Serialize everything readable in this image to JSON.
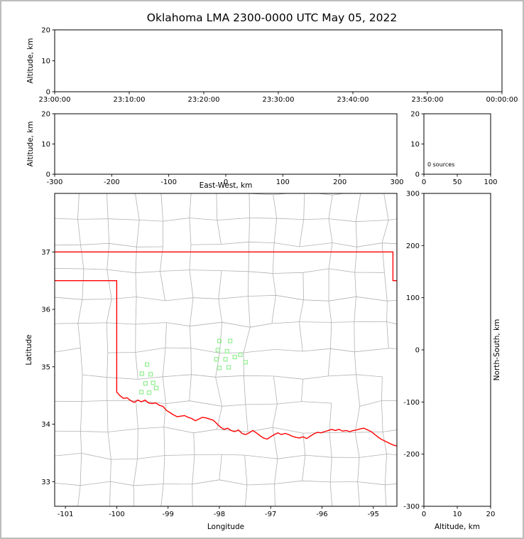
{
  "figure": {
    "title": "Oklahoma LMA 2300-0000 UTC May 05, 2022",
    "background": "#ffffff",
    "border_color": "#bdbdbd"
  },
  "colors": {
    "axis": "#000000",
    "county_lines": "#b2b2b2",
    "state_border": "#ff0000",
    "station_marker": "#90ee90"
  },
  "chart_data": [
    {
      "id": "time_height",
      "type": "scatter",
      "ylabel": "Altitude, km",
      "xlim": [
        0,
        6
      ],
      "xtick_values": [
        0,
        1,
        2,
        3,
        4,
        5,
        6
      ],
      "xticks": [
        "23:00:00",
        "23:10:00",
        "23:20:00",
        "23:30:00",
        "23:40:00",
        "23:50:00",
        "00:00:00"
      ],
      "ylim": [
        0,
        20
      ],
      "yticks": [
        0,
        10,
        20
      ],
      "points": []
    },
    {
      "id": "ew_height",
      "type": "scatter",
      "xlabel": "East-West, km",
      "ylabel": "Altitude, km",
      "xlim": [
        -300,
        300
      ],
      "xticks": [
        -300,
        -200,
        -100,
        0,
        100,
        200,
        300
      ],
      "ylim": [
        0,
        20
      ],
      "yticks": [
        0,
        10,
        20
      ],
      "points": []
    },
    {
      "id": "alt_hist",
      "type": "line",
      "xlim": [
        0,
        100
      ],
      "xticks": [
        0,
        50,
        100
      ],
      "ylim": [
        0,
        20
      ],
      "yticks": [
        0,
        10,
        20
      ],
      "annotation": "0 sources",
      "points": []
    },
    {
      "id": "plan_map",
      "type": "map",
      "xlabel": "Longitude",
      "ylabel": "Latitude",
      "xlim": [
        -101.21,
        -94.54
      ],
      "xticks": [
        -101,
        -100,
        -99,
        -98,
        -97,
        -96,
        -95
      ],
      "ylim": [
        32.57,
        38.02
      ],
      "yticks": [
        33,
        34,
        35,
        36,
        37
      ],
      "stations": [
        [
          -98.0,
          35.45
        ],
        [
          -97.79,
          35.45
        ],
        [
          -98.03,
          35.29
        ],
        [
          -97.85,
          35.27
        ],
        [
          -98.06,
          35.13
        ],
        [
          -97.88,
          35.13
        ],
        [
          -97.7,
          35.17
        ],
        [
          -97.59,
          35.21
        ],
        [
          -98.0,
          34.98
        ],
        [
          -97.82,
          34.99
        ],
        [
          -97.49,
          35.08
        ],
        [
          -99.41,
          35.04
        ],
        [
          -99.51,
          34.88
        ],
        [
          -99.34,
          34.87
        ],
        [
          -99.44,
          34.71
        ],
        [
          -99.29,
          34.72
        ],
        [
          -99.52,
          34.56
        ],
        [
          -99.37,
          34.55
        ],
        [
          -99.23,
          34.63
        ]
      ],
      "state_lines": [
        [
          [
            -101.25,
            37.0
          ],
          [
            -94.617,
            37.0
          ]
        ],
        [
          [
            -94.617,
            37.0
          ],
          [
            -94.617,
            36.5
          ],
          [
            -94.5,
            36.5
          ]
        ],
        [
          [
            -101.25,
            36.5
          ],
          [
            -100.0,
            36.5
          ],
          [
            -100.0,
            34.56
          ]
        ],
        [
          [
            -100.0,
            34.56
          ],
          [
            -99.94,
            34.5
          ],
          [
            -99.87,
            34.45
          ],
          [
            -99.8,
            34.46
          ],
          [
            -99.73,
            34.41
          ],
          [
            -99.66,
            34.38
          ],
          [
            -99.59,
            34.42
          ],
          [
            -99.52,
            34.39
          ],
          [
            -99.45,
            34.42
          ],
          [
            -99.38,
            34.37
          ],
          [
            -99.31,
            34.36
          ],
          [
            -99.24,
            34.37
          ],
          [
            -99.17,
            34.33
          ],
          [
            -99.1,
            34.31
          ],
          [
            -99.03,
            34.24
          ],
          [
            -98.96,
            34.2
          ],
          [
            -98.89,
            34.16
          ],
          [
            -98.82,
            34.13
          ],
          [
            -98.75,
            34.14
          ],
          [
            -98.68,
            34.15
          ],
          [
            -98.61,
            34.12
          ],
          [
            -98.54,
            34.1
          ],
          [
            -98.47,
            34.06
          ],
          [
            -98.4,
            34.09
          ],
          [
            -98.33,
            34.12
          ],
          [
            -98.26,
            34.11
          ],
          [
            -98.19,
            34.09
          ],
          [
            -98.12,
            34.07
          ],
          [
            -98.05,
            34.01
          ],
          [
            -97.98,
            33.95
          ],
          [
            -97.91,
            33.91
          ],
          [
            -97.84,
            33.93
          ],
          [
            -97.77,
            33.89
          ],
          [
            -97.7,
            33.87
          ],
          [
            -97.63,
            33.9
          ],
          [
            -97.56,
            33.84
          ],
          [
            -97.49,
            33.82
          ],
          [
            -97.42,
            33.85
          ],
          [
            -97.35,
            33.89
          ],
          [
            -97.28,
            33.85
          ],
          [
            -97.21,
            33.8
          ],
          [
            -97.14,
            33.76
          ],
          [
            -97.07,
            33.74
          ],
          [
            -97.0,
            33.78
          ],
          [
            -96.93,
            33.82
          ],
          [
            -96.86,
            33.85
          ],
          [
            -96.79,
            33.82
          ],
          [
            -96.72,
            33.84
          ],
          [
            -96.65,
            33.82
          ],
          [
            -96.58,
            33.79
          ],
          [
            -96.51,
            33.77
          ],
          [
            -96.44,
            33.76
          ],
          [
            -96.37,
            33.78
          ],
          [
            -96.3,
            33.75
          ],
          [
            -96.23,
            33.79
          ],
          [
            -96.16,
            33.83
          ],
          [
            -96.09,
            33.86
          ],
          [
            -96.02,
            33.85
          ],
          [
            -95.95,
            33.87
          ],
          [
            -95.88,
            33.89
          ],
          [
            -95.81,
            33.91
          ],
          [
            -95.74,
            33.89
          ],
          [
            -95.67,
            33.91
          ],
          [
            -95.6,
            33.88
          ],
          [
            -95.53,
            33.89
          ],
          [
            -95.46,
            33.87
          ],
          [
            -95.39,
            33.89
          ],
          [
            -95.32,
            33.9
          ],
          [
            -95.25,
            33.92
          ],
          [
            -95.18,
            33.93
          ],
          [
            -95.11,
            33.9
          ],
          [
            -95.04,
            33.87
          ],
          [
            -94.97,
            33.82
          ],
          [
            -94.9,
            33.77
          ],
          [
            -94.83,
            33.73
          ],
          [
            -94.76,
            33.7
          ],
          [
            -94.69,
            33.67
          ],
          [
            -94.62,
            33.64
          ],
          [
            -94.54,
            33.62
          ]
        ]
      ],
      "county_grid": {
        "seed": 9,
        "lon_min": -101.25,
        "lon_max": -94.5,
        "lat_min": 32.52,
        "lat_max": 38.06,
        "dlon": 0.54,
        "dlat": 0.46,
        "jitter": 0.07,
        "skip": 0.1
      }
    },
    {
      "id": "ns_height",
      "type": "scatter",
      "xlabel": "Altitude, km",
      "ylabel": "North-South, km",
      "xlim": [
        0,
        20
      ],
      "xticks": [
        0,
        10,
        20
      ],
      "ylim": [
        -300,
        300
      ],
      "yticks": [
        300,
        200,
        100,
        0,
        -100,
        -200,
        -300
      ],
      "points": []
    }
  ]
}
